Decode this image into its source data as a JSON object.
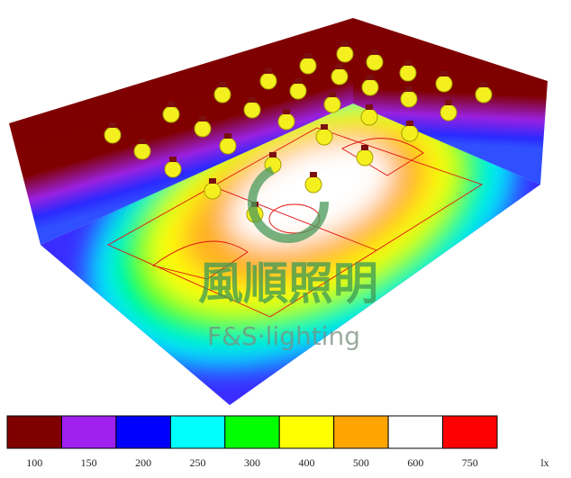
{
  "watermark": {
    "brand_cn": "風順照明",
    "brand_en": "F&S·lighting"
  },
  "legend": {
    "unit": "lx",
    "entries": [
      {
        "value": 100,
        "color": "#800000"
      },
      {
        "value": 150,
        "color": "#a020f0"
      },
      {
        "value": 200,
        "color": "#0000ff"
      },
      {
        "value": 250,
        "color": "#00ffff"
      },
      {
        "value": 300,
        "color": "#00ff00"
      },
      {
        "value": 400,
        "color": "#ffff00"
      },
      {
        "value": 500,
        "color": "#ffa500"
      },
      {
        "value": 600,
        "color": "#ffffff"
      },
      {
        "value": 750,
        "color": "#ff0000"
      }
    ]
  }
}
